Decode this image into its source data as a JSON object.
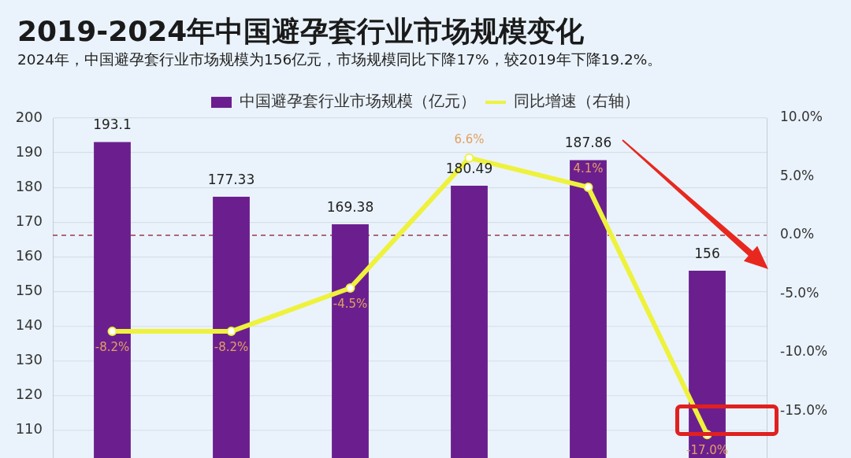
{
  "chart_data": {
    "type": "bar",
    "title": "2019-2024年中国避孕套行业市场规模变化",
    "subtitle": "2024年，中国避孕套行业市场规模为156亿元，市场规模同比下降17%，较2019年下降19.2%。",
    "categories": [
      null,
      null,
      null,
      null,
      null,
      null
    ],
    "series": [
      {
        "name": "中国避孕套行业市场规模（亿元）",
        "color": "#6b1f8f",
        "values": [
          193.1,
          177.33,
          169.38,
          180.49,
          187.86,
          156
        ],
        "value_labels": [
          "193.1",
          "177.33",
          "169.38",
          "180.49",
          "187.86",
          "156"
        ]
      },
      {
        "name": "同比增速（右轴）",
        "type": "line",
        "axis": "y2",
        "color": "#eef23c",
        "values": [
          -8.2,
          -8.2,
          -4.5,
          6.6,
          4.1,
          -17
        ],
        "value_labels": [
          "-8.2%",
          "-8.2%",
          "-4.5%",
          "6.6%",
          "4.1%",
          "-17.0%"
        ]
      }
    ],
    "ylim": [
      102,
      200
    ],
    "yticks": [
      110,
      120,
      130,
      140,
      150,
      160,
      170,
      180,
      190,
      200
    ],
    "y2lim": [
      -19,
      10
    ],
    "y2ticks": [
      {
        "value": 10,
        "label": "10.0%"
      },
      {
        "value": 5,
        "label": "5.0%"
      },
      {
        "value": 0,
        "label": "0.0%"
      },
      {
        "value": -5,
        "label": "-5.0%"
      },
      {
        "value": -10,
        "label": "-10.0%"
      },
      {
        "value": -15,
        "label": "-15.0%"
      }
    ],
    "ref_lines": [
      {
        "axis": "y2",
        "value": 0,
        "color": "#9b3b4b",
        "line_style": "dashed"
      }
    ],
    "grid": "y",
    "legend": "top",
    "marker": "circle",
    "tick_labels": "y"
  }
}
